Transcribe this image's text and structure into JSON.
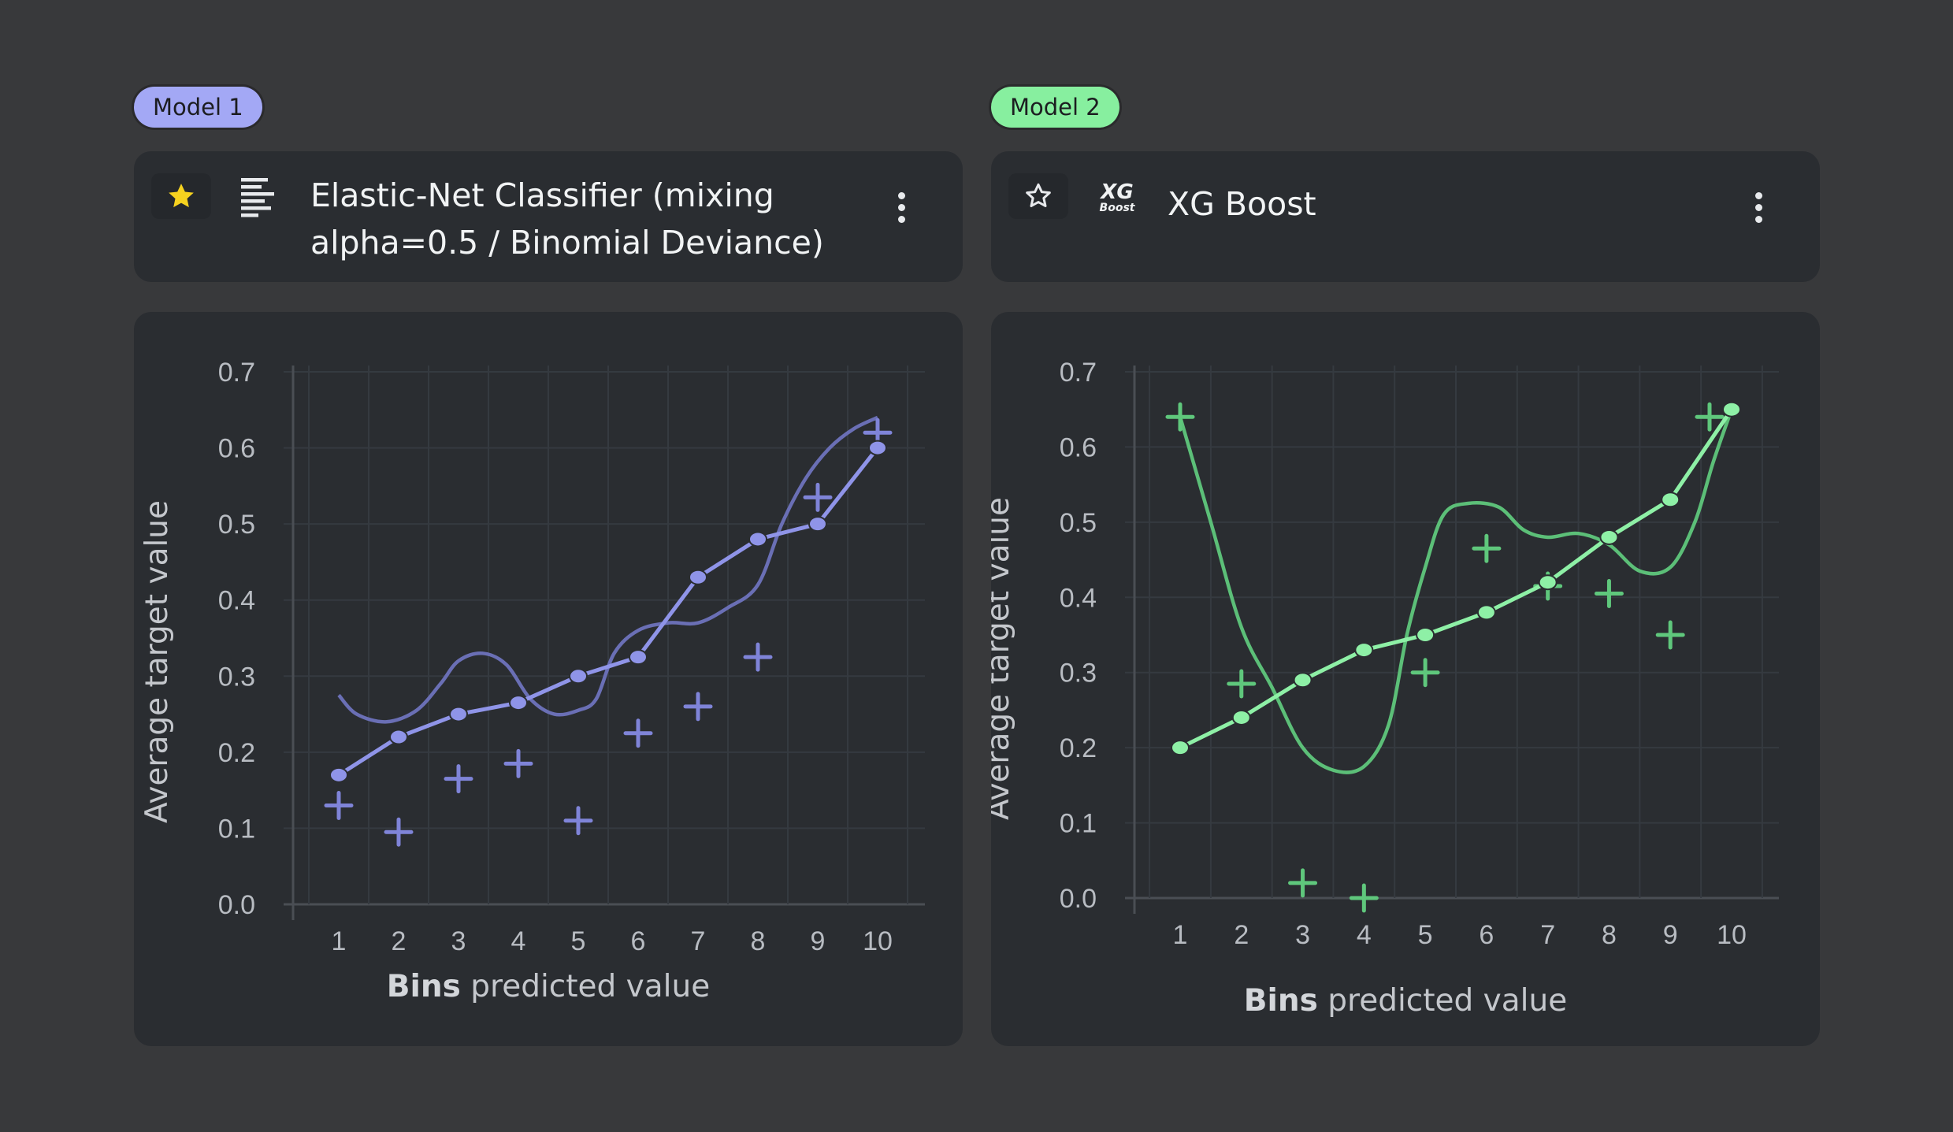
{
  "models": [
    {
      "badge": "Model 1",
      "badge_color": "#a3a8f5",
      "title": "Elastic-Net Classifier (mixing alpha=0.5 / Binomial Deviance)",
      "starred": true,
      "icon": "elastic-net-icon"
    },
    {
      "badge": "Model 2",
      "badge_color": "#87ef9f",
      "title": "XG Boost",
      "starred": false,
      "icon": "xgboost-icon",
      "icon_text_main": "XG",
      "icon_text_sub": "Boost"
    }
  ],
  "chart_data": [
    {
      "type": "line",
      "xlabel_bold": "Bins",
      "xlabel_rest": " predicted value",
      "ylabel": "Average target value",
      "categories": [
        "1",
        "2",
        "3",
        "4",
        "5",
        "6",
        "7",
        "8",
        "9",
        "10"
      ],
      "yticks": [
        "0.0",
        "0.1",
        "0.2",
        "0.3",
        "0.4",
        "0.5",
        "0.6",
        "0.7"
      ],
      "ylim": [
        0,
        0.7
      ],
      "color": "#8f94e8",
      "smooth_color": "#6a6fb5",
      "plus_color": "#7f84d8",
      "predicted": [
        0.17,
        0.22,
        0.25,
        0.265,
        0.3,
        0.325,
        0.43,
        0.48,
        0.5,
        0.6
      ],
      "actual": [
        0.13,
        0.095,
        0.165,
        0.185,
        0.11,
        0.225,
        0.26,
        0.325,
        0.535,
        0.62
      ],
      "smooth": [
        [
          1,
          0.275
        ],
        [
          1.3,
          0.25
        ],
        [
          1.8,
          0.24
        ],
        [
          2.3,
          0.255
        ],
        [
          2.7,
          0.29
        ],
        [
          3,
          0.32
        ],
        [
          3.4,
          0.33
        ],
        [
          3.8,
          0.315
        ],
        [
          4.2,
          0.27
        ],
        [
          4.6,
          0.25
        ],
        [
          5,
          0.255
        ],
        [
          5.3,
          0.27
        ],
        [
          5.6,
          0.33
        ],
        [
          6,
          0.36
        ],
        [
          6.5,
          0.37
        ],
        [
          7,
          0.37
        ],
        [
          7.5,
          0.39
        ],
        [
          8,
          0.42
        ],
        [
          8.4,
          0.5
        ],
        [
          8.8,
          0.56
        ],
        [
          9.2,
          0.6
        ],
        [
          9.6,
          0.625
        ],
        [
          10,
          0.64
        ]
      ],
      "grid": true
    },
    {
      "type": "line",
      "xlabel_bold": "Bins",
      "xlabel_rest": " predicted value",
      "ylabel": "Average target value",
      "categories": [
        "1",
        "2",
        "3",
        "4",
        "5",
        "6",
        "7",
        "8",
        "9",
        "10"
      ],
      "yticks": [
        "0.0",
        "0.1",
        "0.2",
        "0.3",
        "0.4",
        "0.5",
        "0.6",
        "0.7"
      ],
      "ylim": [
        0,
        0.7
      ],
      "color": "#8ef0a6",
      "smooth_color": "#5cbf78",
      "plus_color": "#5fc77c",
      "predicted": [
        0.2,
        0.24,
        0.29,
        0.33,
        0.35,
        0.38,
        0.42,
        0.48,
        0.53,
        0.65
      ],
      "actual": [
        0.64,
        0.285,
        0.02,
        0.0,
        0.3,
        0.465,
        0.415,
        0.405,
        0.35,
        0.64
      ],
      "smooth": [
        [
          1,
          0.64
        ],
        [
          1.5,
          0.5
        ],
        [
          2,
          0.36
        ],
        [
          2.5,
          0.28
        ],
        [
          3,
          0.2
        ],
        [
          3.5,
          0.17
        ],
        [
          4,
          0.175
        ],
        [
          4.4,
          0.23
        ],
        [
          4.7,
          0.35
        ],
        [
          5,
          0.44
        ],
        [
          5.3,
          0.51
        ],
        [
          5.7,
          0.525
        ],
        [
          6.2,
          0.52
        ],
        [
          6.6,
          0.49
        ],
        [
          7,
          0.48
        ],
        [
          7.5,
          0.485
        ],
        [
          8,
          0.47
        ],
        [
          8.5,
          0.435
        ],
        [
          9,
          0.44
        ],
        [
          9.4,
          0.5
        ],
        [
          9.7,
          0.58
        ],
        [
          10,
          0.65
        ]
      ],
      "grid": true
    }
  ]
}
